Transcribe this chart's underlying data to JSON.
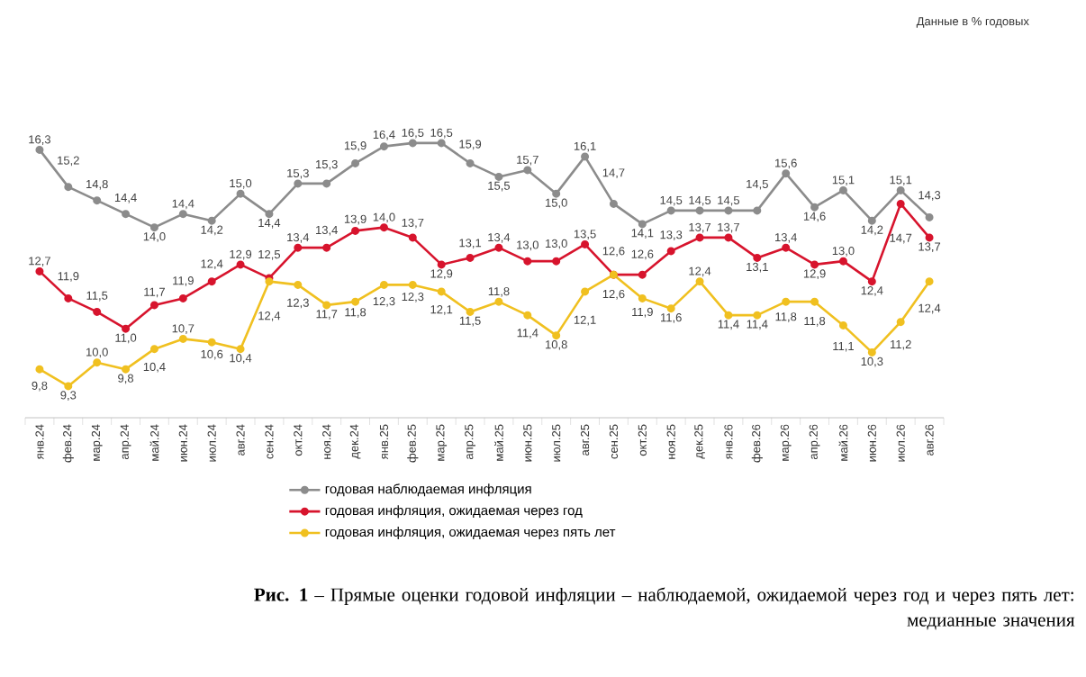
{
  "chart_data": {
    "type": "line",
    "title": "**Рис. 1** – Прямые оценки годовой инфляции – наблюдаемой, ожидаемой через год и через пять лет: медианные значения",
    "annotations": [
      "Данные в % годовых"
    ],
    "categories": [
      "янв.24",
      "фев.24",
      "мар.24",
      "апр.24",
      "май.24",
      "июн.24",
      "июл.24",
      "авг.24",
      "сен.24",
      "окт.24",
      "ноя.24",
      "дек.24",
      "янв.25",
      "фев.25",
      "мар.25",
      "апр.25",
      "май.25",
      "июн.25",
      "июл.25",
      "авг.25",
      "сен.25",
      "окт.25",
      "ноя.25",
      "дек.25",
      "янв.26",
      "фев.26",
      "мар.26",
      "апр.26",
      "май.26",
      "июн.26",
      "июл.26",
      "авг.26"
    ],
    "series": [
      {
        "name": "годовая наблюдаемая  инфляция",
        "color": "#8c8c8c",
        "values": [
          16.3,
          15.2,
          14.8,
          14.4,
          14.0,
          14.4,
          14.2,
          15.0,
          14.4,
          15.3,
          15.3,
          15.9,
          16.4,
          16.5,
          16.5,
          15.9,
          15.5,
          15.7,
          15.0,
          16.1,
          14.7,
          14.1,
          14.5,
          14.5,
          14.5,
          14.5,
          15.6,
          14.6,
          15.1,
          14.2,
          15.1,
          14.3
        ],
        "value_labels": [
          "16,3",
          "15,2",
          "14,8",
          "14,4",
          "14,0",
          "14,4",
          "14,2",
          "15,0",
          "14,4",
          "15,3",
          "15,3",
          "15,9",
          "16,4",
          "16,5",
          "16,5",
          "15,9",
          "15,5",
          "15,7",
          "15,0",
          "16,1",
          "14,7",
          "14,1",
          "14,5",
          "14,5",
          "14,5",
          "14,5",
          "15,6",
          "14,6",
          "15,1",
          "14,2",
          "15,1",
          "14,3"
        ]
      },
      {
        "name": "годовая инфляция,  ожидаемая  через год",
        "color": "#d7142d",
        "values": [
          12.7,
          11.9,
          11.5,
          11.0,
          11.7,
          11.9,
          12.4,
          12.9,
          12.5,
          13.4,
          13.4,
          13.9,
          14.0,
          13.7,
          12.9,
          13.1,
          13.4,
          13.0,
          13.0,
          13.5,
          12.6,
          12.6,
          13.3,
          13.7,
          13.7,
          13.1,
          13.4,
          12.9,
          13.0,
          12.4,
          14.7,
          13.7
        ],
        "value_labels": [
          "12,7",
          "11,9",
          "11,5",
          "11,0",
          "11,7",
          "11,9",
          "12,4",
          "12,9",
          "12,5",
          "13,4",
          "13,4",
          "13,9",
          "14,0",
          "13,7",
          "12,9",
          "13,1",
          "13,4",
          "13,0",
          "13,0",
          "13,5",
          "12,6",
          "12,6",
          "13,3",
          "13,7",
          "13,7",
          "13,1",
          "13,4",
          "12,9",
          "13,0",
          "12,4",
          "14,7",
          "13,7"
        ]
      },
      {
        "name": "годовая инфляция,  ожидаемая  через пять лет",
        "color": "#f0c020",
        "values": [
          9.8,
          9.3,
          10.0,
          9.8,
          10.4,
          10.7,
          10.6,
          10.4,
          12.4,
          12.3,
          11.7,
          11.8,
          12.3,
          12.3,
          12.1,
          11.5,
          11.8,
          11.4,
          10.8,
          12.1,
          12.6,
          11.9,
          11.6,
          12.4,
          11.4,
          11.4,
          11.8,
          11.8,
          11.1,
          10.3,
          11.2,
          12.4
        ],
        "value_labels": [
          "9,8",
          "9,3",
          "10,0",
          "9,8",
          "10,4",
          "10,7",
          "10,6",
          "10,4",
          "12,4",
          "12,3",
          "11,7",
          "11,8",
          "12,3",
          "12,3",
          "12,1",
          "11,5",
          "11,8",
          "11,4",
          "10,8",
          "12,1",
          "12,6",
          "11,9",
          "11,6",
          "12,4",
          "11,4",
          "11,4",
          "11,8",
          "11,8",
          "11,1",
          "10,3",
          "11,2",
          "12,4"
        ]
      }
    ],
    "marker": "circle",
    "line_style": "solid",
    "legend": "bottom",
    "grid": false
  }
}
